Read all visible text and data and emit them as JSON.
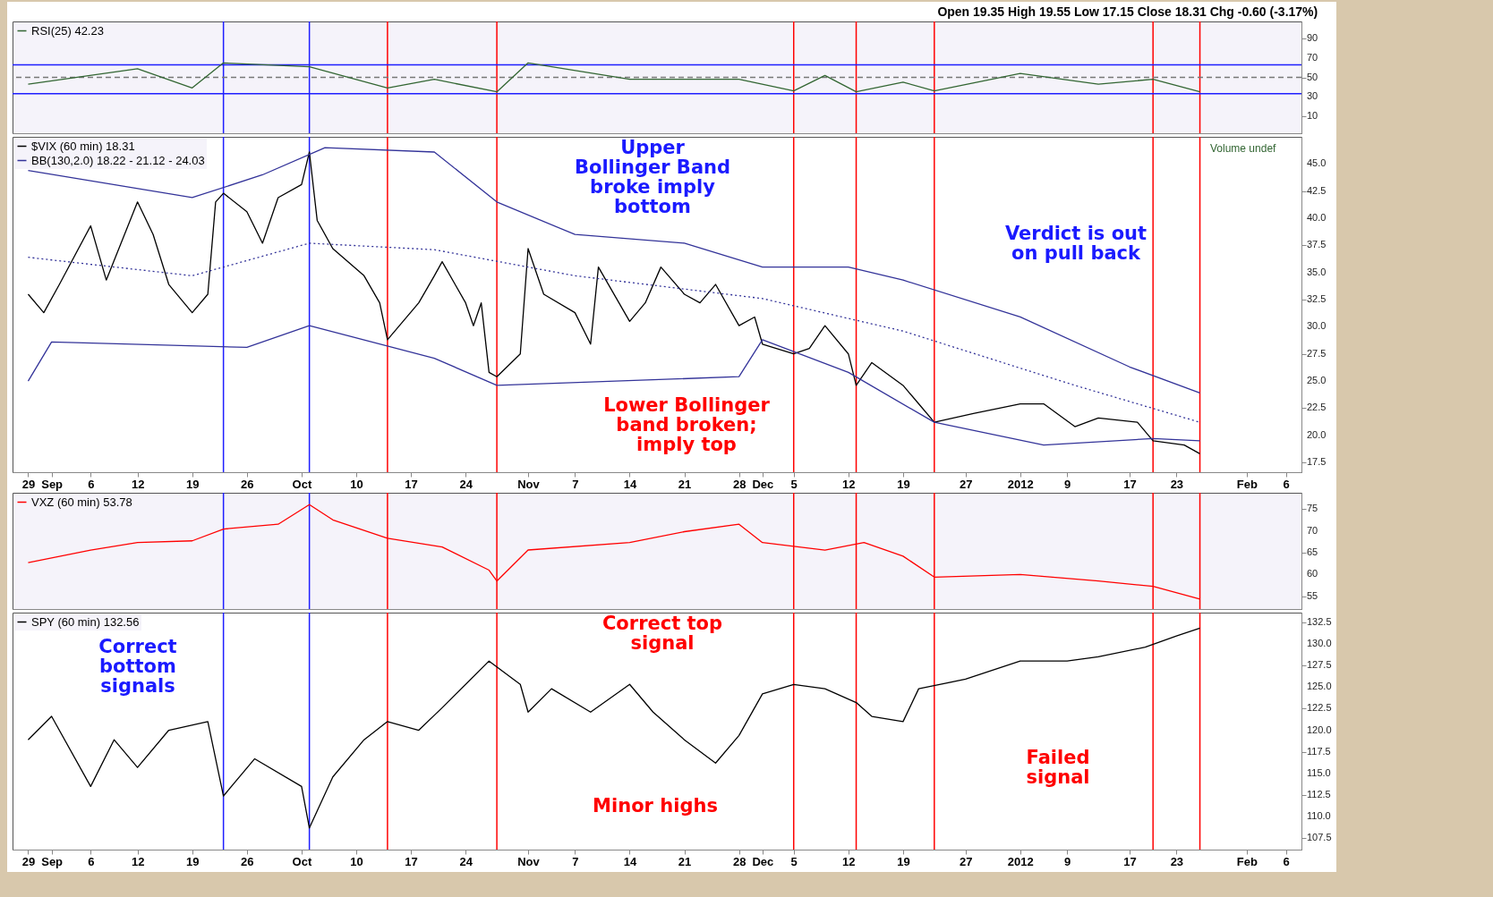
{
  "chart_data": [
    {
      "type": "line",
      "title": "Open 19.35 High 19.55 Low 17.15 Close 18.31 Chg -0.60 (-3.17%)",
      "tick_labels": "y",
      "legend": "top left",
      "xlim": [
        "2011-08-27",
        "2012-02-08"
      ],
      "ylim": [
        -8,
        108
      ],
      "yticks": [
        10,
        30,
        50,
        70,
        90
      ],
      "series": [
        {
          "name": "RSI(25) 42.23",
          "color": "#336633",
          "x": [
            "2011-08-29",
            "2011-09-12",
            "2011-09-19",
            "2011-09-23",
            "2011-10-04",
            "2011-10-14",
            "2011-10-20",
            "2011-10-28",
            "2011-11-01",
            "2011-11-14",
            "2011-11-28",
            "2011-12-05",
            "2011-12-09",
            "2011-12-13",
            "2011-12-19",
            "2011-12-23",
            "2012-01-03",
            "2012-01-13",
            "2012-01-20",
            "2012-01-26"
          ],
          "values": [
            43,
            59,
            39,
            65,
            61,
            39,
            48,
            35,
            65,
            48,
            48,
            36,
            52,
            35,
            45,
            36,
            54,
            43,
            48,
            35
          ]
        }
      ],
      "ref_lines": [
        {
          "axis": "y",
          "value": 63,
          "color": "#1f1fff"
        },
        {
          "axis": "y",
          "value": 33,
          "color": "#1f1fff"
        },
        {
          "axis": "y",
          "value": 50,
          "color": "#777777",
          "line_style": "dashed"
        },
        {
          "axis": "x",
          "value": "2011-09-23",
          "color": "#1f1fff"
        },
        {
          "axis": "x",
          "value": "2011-10-04",
          "color": "#1f1fff"
        },
        {
          "axis": "x",
          "value": "2011-10-14",
          "color": "#ff0000"
        },
        {
          "axis": "x",
          "value": "2011-10-28",
          "color": "#ff0000"
        },
        {
          "axis": "x",
          "value": "2011-12-05",
          "color": "#ff0000"
        },
        {
          "axis": "x",
          "value": "2011-12-13",
          "color": "#ff0000"
        },
        {
          "axis": "x",
          "value": "2011-12-23",
          "color": "#ff0000"
        },
        {
          "axis": "x",
          "value": "2012-01-20",
          "color": "#ff0000"
        },
        {
          "axis": "x",
          "value": "2012-01-26",
          "color": "#ff0000"
        }
      ]
    },
    {
      "type": "line",
      "legend": "top left",
      "xlim": [
        "2011-08-27",
        "2012-02-08"
      ],
      "ylim": [
        16.6,
        47.5
      ],
      "xticks": [
        {
          "value": "2011-08-29",
          "label": "29"
        },
        {
          "value": "2011-09-01",
          "label": "Sep"
        },
        {
          "value": "2011-09-06",
          "label": "6"
        },
        {
          "value": "2011-09-12",
          "label": "12"
        },
        {
          "value": "2011-09-19",
          "label": "19"
        },
        {
          "value": "2011-09-26",
          "label": "26"
        },
        {
          "value": "2011-10-03",
          "label": "Oct"
        },
        {
          "value": "2011-10-10",
          "label": "10"
        },
        {
          "value": "2011-10-17",
          "label": "17"
        },
        {
          "value": "2011-10-24",
          "label": "24"
        },
        {
          "value": "2011-11-01",
          "label": "Nov"
        },
        {
          "value": "2011-11-07",
          "label": "7"
        },
        {
          "value": "2011-11-14",
          "label": "14"
        },
        {
          "value": "2011-11-21",
          "label": "21"
        },
        {
          "value": "2011-11-28",
          "label": "28"
        },
        {
          "value": "2011-12-01",
          "label": "Dec"
        },
        {
          "value": "2011-12-05",
          "label": "5"
        },
        {
          "value": "2011-12-12",
          "label": "12"
        },
        {
          "value": "2011-12-19",
          "label": "19"
        },
        {
          "value": "2011-12-27",
          "label": "27"
        },
        {
          "value": "2012-01-03",
          "label": "2012"
        },
        {
          "value": "2012-01-09",
          "label": "9"
        },
        {
          "value": "2012-01-17",
          "label": "17"
        },
        {
          "value": "2012-01-23",
          "label": "23"
        },
        {
          "value": "2012-02-01",
          "label": "Feb"
        },
        {
          "value": "2012-02-06",
          "label": "6"
        }
      ],
      "yticks": [
        {
          "value": 17.5,
          "label": "17.5"
        },
        {
          "value": 20,
          "label": "20.0"
        },
        {
          "value": 22.5,
          "label": "22.5"
        },
        {
          "value": 25,
          "label": "25.0"
        },
        {
          "value": 27.5,
          "label": "27.5"
        },
        {
          "value": 30,
          "label": "30.0"
        },
        {
          "value": 32.5,
          "label": "32.5"
        },
        {
          "value": 35,
          "label": "35.0"
        },
        {
          "value": 37.5,
          "label": "37.5"
        },
        {
          "value": 40,
          "label": "40.0"
        },
        {
          "value": 42.5,
          "label": "42.5"
        },
        {
          "value": 45,
          "label": "45.0"
        }
      ],
      "series": [
        {
          "name": "$VIX (60 min) 18.31",
          "color": "#000000",
          "x": [
            "2011-08-29",
            "2011-08-31",
            "2011-09-02",
            "2011-09-06",
            "2011-09-08",
            "2011-09-12",
            "2011-09-14",
            "2011-09-16",
            "2011-09-19",
            "2011-09-21",
            "2011-09-22",
            "2011-09-23",
            "2011-09-26",
            "2011-09-28",
            "2011-09-30",
            "2011-10-03",
            "2011-10-04",
            "2011-10-05",
            "2011-10-07",
            "2011-10-11",
            "2011-10-13",
            "2011-10-14",
            "2011-10-18",
            "2011-10-20",
            "2011-10-21",
            "2011-10-24",
            "2011-10-25",
            "2011-10-26",
            "2011-10-27",
            "2011-10-28",
            "2011-10-31",
            "2011-11-01",
            "2011-11-03",
            "2011-11-07",
            "2011-11-09",
            "2011-11-10",
            "2011-11-14",
            "2011-11-16",
            "2011-11-18",
            "2011-11-21",
            "2011-11-23",
            "2011-11-25",
            "2011-11-28",
            "2011-11-30",
            "2011-12-01",
            "2011-12-05",
            "2011-12-07",
            "2011-12-09",
            "2011-12-12",
            "2011-12-13",
            "2011-12-15",
            "2011-12-19",
            "2011-12-21",
            "2011-12-23",
            "2011-12-28",
            "2012-01-03",
            "2012-01-06",
            "2012-01-10",
            "2012-01-13",
            "2012-01-18",
            "2012-01-20",
            "2012-01-24",
            "2012-01-26"
          ],
          "values": [
            33.0,
            31.3,
            33.9,
            39.3,
            34.3,
            41.5,
            38.5,
            33.9,
            31.3,
            33.0,
            41.5,
            42.3,
            40.6,
            37.7,
            41.9,
            43.1,
            46.1,
            39.8,
            37.2,
            34.7,
            32.2,
            28.8,
            32.2,
            34.7,
            36.0,
            32.2,
            30.1,
            32.2,
            25.8,
            25.4,
            27.5,
            37.2,
            33.0,
            31.3,
            28.4,
            35.5,
            30.5,
            32.2,
            35.5,
            33.0,
            32.2,
            33.9,
            30.1,
            30.9,
            28.4,
            27.5,
            28.0,
            30.1,
            27.5,
            24.6,
            26.7,
            24.6,
            22.9,
            21.2,
            22.0,
            22.9,
            22.9,
            20.8,
            21.6,
            21.2,
            19.5,
            19.1,
            18.3
          ]
        },
        {
          "name": "BB(130,2.0) 18.22 - 21.12 - 24.03",
          "color": "#333399",
          "x": [
            "2011-08-29",
            "2011-09-19",
            "2011-09-28",
            "2011-10-06",
            "2011-10-20",
            "2011-10-28",
            "2011-11-07",
            "2011-11-21",
            "2011-12-01",
            "2011-12-12",
            "2011-12-19",
            "2012-01-03",
            "2012-01-17",
            "2012-01-26"
          ],
          "values": [
            44.4,
            41.9,
            44.0,
            46.5,
            46.1,
            41.5,
            38.5,
            37.7,
            35.5,
            35.5,
            34.3,
            30.9,
            26.3,
            23.9
          ]
        },
        {
          "color": "#333399",
          "line_style": "dotted",
          "x": [
            "2011-08-29",
            "2011-09-19",
            "2011-10-04",
            "2011-10-20",
            "2011-11-07",
            "2011-12-01",
            "2011-12-19",
            "2012-01-10",
            "2012-01-26"
          ],
          "values": [
            36.4,
            34.7,
            37.7,
            37.1,
            34.7,
            32.6,
            29.6,
            24.6,
            21.2
          ]
        },
        {
          "color": "#333399",
          "x": [
            "2011-08-29",
            "2011-09-01",
            "2011-09-26",
            "2011-10-04",
            "2011-10-20",
            "2011-10-28",
            "2011-11-28",
            "2011-12-01",
            "2011-12-12",
            "2011-12-23",
            "2012-01-06",
            "2012-01-20",
            "2012-01-26"
          ],
          "values": [
            25.0,
            28.6,
            28.1,
            30.1,
            27.1,
            24.6,
            25.4,
            28.8,
            25.8,
            21.2,
            19.1,
            19.7,
            19.5
          ]
        }
      ],
      "annotations": [
        "Volume undef",
        "Upper\nBollinger Band\nbroke imply\nbottom",
        "Lower Bollinger\nband broken;\nimply top",
        "Verdict is out\non pull back"
      ],
      "ref_lines": [
        {
          "axis": "x",
          "value": "2011-09-23",
          "color": "#1f1fff"
        },
        {
          "axis": "x",
          "value": "2011-10-04",
          "color": "#1f1fff"
        },
        {
          "axis": "x",
          "value": "2011-10-14",
          "color": "#ff0000"
        },
        {
          "axis": "x",
          "value": "2011-10-28",
          "color": "#ff0000"
        },
        {
          "axis": "x",
          "value": "2011-12-05",
          "color": "#ff0000"
        },
        {
          "axis": "x",
          "value": "2011-12-13",
          "color": "#ff0000"
        },
        {
          "axis": "x",
          "value": "2011-12-23",
          "color": "#ff0000"
        },
        {
          "axis": "x",
          "value": "2012-01-20",
          "color": "#ff0000"
        },
        {
          "axis": "x",
          "value": "2012-01-26",
          "color": "#ff0000"
        }
      ]
    },
    {
      "type": "line",
      "tick_labels": "y",
      "legend": "top left",
      "xlim": [
        "2011-08-27",
        "2012-02-08"
      ],
      "ylim": [
        52.1,
        78.7
      ],
      "yticks": [
        55,
        60,
        65,
        70,
        75
      ],
      "series": [
        {
          "name": "VXZ (60 min) 53.78",
          "color": "#ff0000",
          "x": [
            "2011-08-29",
            "2011-09-06",
            "2011-09-12",
            "2011-09-19",
            "2011-09-23",
            "2011-09-30",
            "2011-10-04",
            "2011-10-07",
            "2011-10-14",
            "2011-10-21",
            "2011-10-27",
            "2011-10-28",
            "2011-11-01",
            "2011-11-14",
            "2011-11-21",
            "2011-11-28",
            "2011-12-01",
            "2011-12-09",
            "2011-12-14",
            "2011-12-19",
            "2011-12-23",
            "2012-01-03",
            "2012-01-13",
            "2012-01-20",
            "2012-01-26"
          ],
          "values": [
            62.7,
            65.6,
            67.3,
            67.7,
            70.4,
            71.5,
            76.0,
            72.5,
            68.3,
            66.3,
            61.0,
            58.5,
            65.6,
            67.3,
            69.8,
            71.5,
            67.3,
            65.6,
            67.3,
            64.2,
            59.4,
            60.0,
            58.5,
            57.3,
            54.4
          ]
        }
      ],
      "ref_lines": [
        {
          "axis": "x",
          "value": "2011-09-23",
          "color": "#1f1fff"
        },
        {
          "axis": "x",
          "value": "2011-10-04",
          "color": "#1f1fff"
        },
        {
          "axis": "x",
          "value": "2011-10-14",
          "color": "#ff0000"
        },
        {
          "axis": "x",
          "value": "2011-10-28",
          "color": "#ff0000"
        },
        {
          "axis": "x",
          "value": "2011-12-05",
          "color": "#ff0000"
        },
        {
          "axis": "x",
          "value": "2011-12-13",
          "color": "#ff0000"
        },
        {
          "axis": "x",
          "value": "2011-12-23",
          "color": "#ff0000"
        },
        {
          "axis": "x",
          "value": "2012-01-20",
          "color": "#ff0000"
        },
        {
          "axis": "x",
          "value": "2012-01-26",
          "color": "#ff0000"
        }
      ]
    },
    {
      "type": "line",
      "legend": "top left",
      "xlim": [
        "2011-08-27",
        "2012-02-08"
      ],
      "ylim": [
        106.2,
        133.6
      ],
      "xticks": [
        {
          "value": "2011-08-29",
          "label": "29"
        },
        {
          "value": "2011-09-01",
          "label": "Sep"
        },
        {
          "value": "2011-09-06",
          "label": "6"
        },
        {
          "value": "2011-09-12",
          "label": "12"
        },
        {
          "value": "2011-09-19",
          "label": "19"
        },
        {
          "value": "2011-09-26",
          "label": "26"
        },
        {
          "value": "2011-10-03",
          "label": "Oct"
        },
        {
          "value": "2011-10-10",
          "label": "10"
        },
        {
          "value": "2011-10-17",
          "label": "17"
        },
        {
          "value": "2011-10-24",
          "label": "24"
        },
        {
          "value": "2011-11-01",
          "label": "Nov"
        },
        {
          "value": "2011-11-07",
          "label": "7"
        },
        {
          "value": "2011-11-14",
          "label": "14"
        },
        {
          "value": "2011-11-21",
          "label": "21"
        },
        {
          "value": "2011-11-28",
          "label": "28"
        },
        {
          "value": "2011-12-01",
          "label": "Dec"
        },
        {
          "value": "2011-12-05",
          "label": "5"
        },
        {
          "value": "2011-12-12",
          "label": "12"
        },
        {
          "value": "2011-12-19",
          "label": "19"
        },
        {
          "value": "2011-12-27",
          "label": "27"
        },
        {
          "value": "2012-01-03",
          "label": "2012"
        },
        {
          "value": "2012-01-09",
          "label": "9"
        },
        {
          "value": "2012-01-17",
          "label": "17"
        },
        {
          "value": "2012-01-23",
          "label": "23"
        },
        {
          "value": "2012-02-01",
          "label": "Feb"
        },
        {
          "value": "2012-02-06",
          "label": "6"
        }
      ],
      "yticks": [
        {
          "value": 107.5,
          "label": "107.5"
        },
        {
          "value": 110,
          "label": "110.0"
        },
        {
          "value": 112.5,
          "label": "112.5"
        },
        {
          "value": 115,
          "label": "115.0"
        },
        {
          "value": 117.5,
          "label": "117.5"
        },
        {
          "value": 120,
          "label": "120.0"
        },
        {
          "value": 122.5,
          "label": "122.5"
        },
        {
          "value": 125,
          "label": "125.0"
        },
        {
          "value": 127.5,
          "label": "127.5"
        },
        {
          "value": 130,
          "label": "130.0"
        },
        {
          "value": 132.5,
          "label": "132.5"
        }
      ],
      "series": [
        {
          "name": "SPY (60 min) 132.56",
          "color": "#000000",
          "x": [
            "2011-08-29",
            "2011-09-01",
            "2011-09-06",
            "2011-09-09",
            "2011-09-12",
            "2011-09-16",
            "2011-09-21",
            "2011-09-23",
            "2011-09-27",
            "2011-10-03",
            "2011-10-04",
            "2011-10-07",
            "2011-10-11",
            "2011-10-14",
            "2011-10-18",
            "2011-10-21",
            "2011-10-27",
            "2011-10-31",
            "2011-11-01",
            "2011-11-04",
            "2011-11-09",
            "2011-11-14",
            "2011-11-17",
            "2011-11-21",
            "2011-11-25",
            "2011-11-28",
            "2011-12-01",
            "2011-12-05",
            "2011-12-09",
            "2011-12-13",
            "2011-12-15",
            "2011-12-19",
            "2011-12-21",
            "2011-12-27",
            "2012-01-03",
            "2012-01-09",
            "2012-01-13",
            "2012-01-19",
            "2012-01-23",
            "2012-01-26"
          ],
          "values": [
            118.9,
            121.6,
            113.5,
            118.9,
            115.7,
            120.0,
            121.0,
            112.4,
            116.7,
            113.5,
            108.7,
            114.6,
            118.9,
            121.0,
            120.0,
            122.6,
            128.0,
            125.3,
            122.1,
            124.8,
            122.1,
            125.3,
            122.1,
            118.9,
            116.2,
            119.4,
            124.2,
            125.3,
            124.8,
            123.2,
            121.6,
            121.0,
            124.8,
            125.9,
            128.0,
            128.0,
            128.5,
            129.6,
            130.9,
            131.8
          ]
        }
      ],
      "annotations": [
        "Correct\nbottom\nsignals",
        "Correct top\nsignal",
        "Minor highs",
        "Failed\nsignal"
      ],
      "ref_lines": [
        {
          "axis": "x",
          "value": "2011-09-23",
          "color": "#1f1fff"
        },
        {
          "axis": "x",
          "value": "2011-10-04",
          "color": "#1f1fff"
        },
        {
          "axis": "x",
          "value": "2011-10-14",
          "color": "#ff0000"
        },
        {
          "axis": "x",
          "value": "2011-10-28",
          "color": "#ff0000"
        },
        {
          "axis": "x",
          "value": "2011-12-05",
          "color": "#ff0000"
        },
        {
          "axis": "x",
          "value": "2011-12-13",
          "color": "#ff0000"
        },
        {
          "axis": "x",
          "value": "2011-12-23",
          "color": "#ff0000"
        },
        {
          "axis": "x",
          "value": "2012-01-20",
          "color": "#ff0000"
        },
        {
          "axis": "x",
          "value": "2012-01-26",
          "color": "#ff0000"
        }
      ]
    }
  ]
}
